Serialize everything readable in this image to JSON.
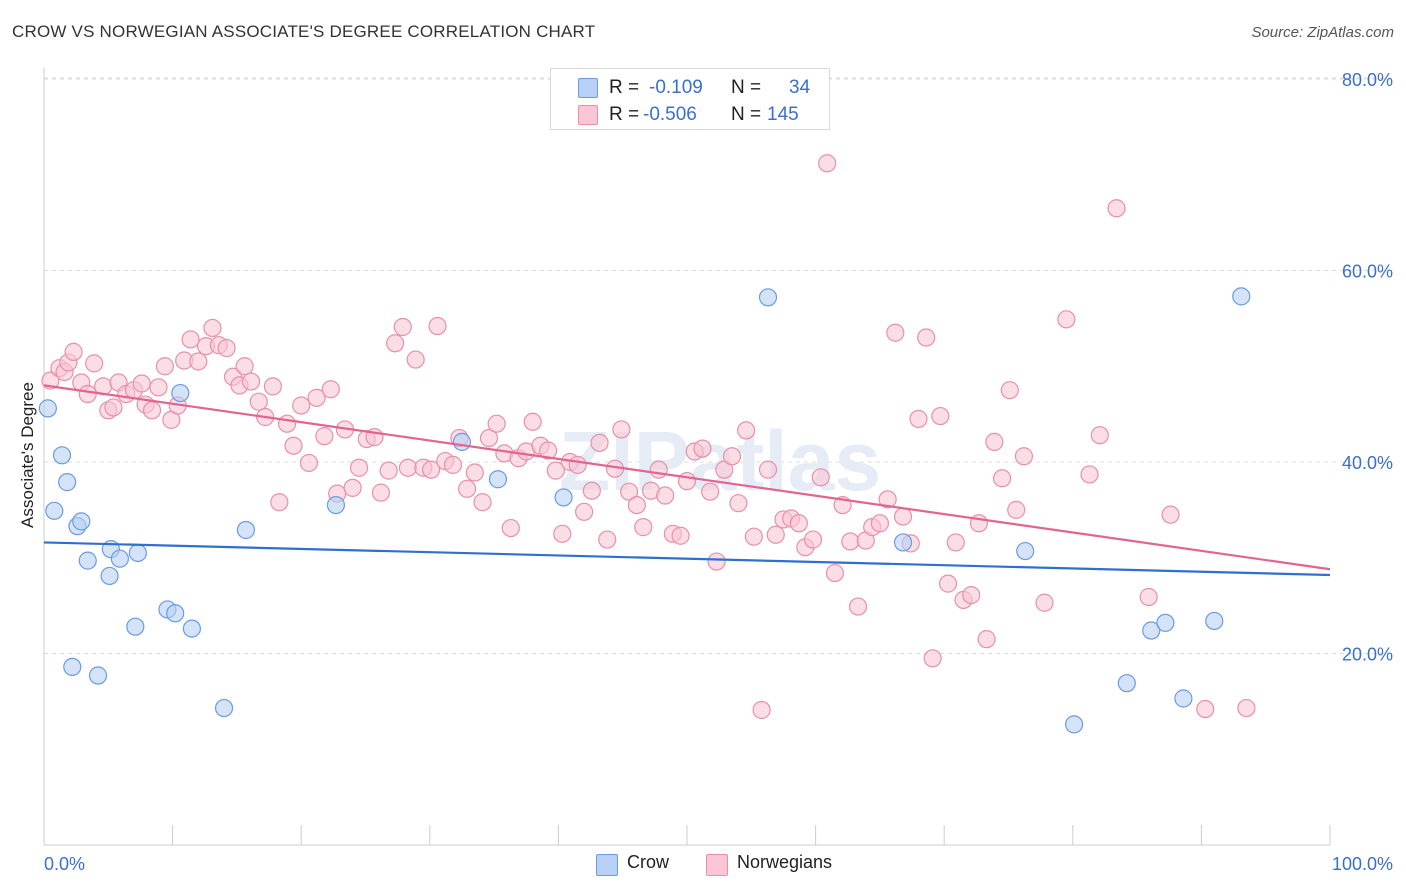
{
  "title": "CROW VS NORWEGIAN ASSOCIATE'S DEGREE CORRELATION CHART",
  "source": "Source: ZipAtlas.com",
  "watermark": "ZIPatlas",
  "legend": {
    "r_label": "R =",
    "n_label": "N =",
    "rows": [
      {
        "name": "Crow",
        "r": "-0.109",
        "n": "34",
        "fill": "#b7d0f3",
        "stroke": "#6b9be0"
      },
      {
        "name": "Norwegians",
        "r": "-0.506",
        "n": "145",
        "fill": "#f8c6d5",
        "stroke": "#e890aa"
      }
    ]
  },
  "chart_data": {
    "type": "scatter",
    "title": "CROW VS NORWEGIAN ASSOCIATE'S DEGREE CORRELATION CHART",
    "xlabel": "",
    "ylabel": "Associate's Degree",
    "xlim": [
      0,
      100
    ],
    "ylim": [
      0,
      80
    ],
    "x_tick_labels": [
      "0.0%",
      "100.0%"
    ],
    "y_ticks": [
      20,
      40,
      60,
      80
    ],
    "y_tick_labels": [
      "20.0%",
      "40.0%",
      "60.0%",
      "80.0%"
    ],
    "grid": "horizontal dashed",
    "legend_position": "top-center",
    "series": [
      {
        "name": "Crow",
        "color": "#6b9be0",
        "fill": "#b7d0f3",
        "line_color": "#2f6fd0",
        "trend": {
          "x": [
            0,
            100
          ],
          "y": [
            31.6,
            28.2
          ]
        },
        "points": [
          [
            0.3,
            45.6
          ],
          [
            0.8,
            34.9
          ],
          [
            1.4,
            40.7
          ],
          [
            1.8,
            37.9
          ],
          [
            2.2,
            18.6
          ],
          [
            2.6,
            33.3
          ],
          [
            2.9,
            33.8
          ],
          [
            3.4,
            29.7
          ],
          [
            4.2,
            17.7
          ],
          [
            5.1,
            28.1
          ],
          [
            5.2,
            30.9
          ],
          [
            5.9,
            29.9
          ],
          [
            7.1,
            22.8
          ],
          [
            7.3,
            30.5
          ],
          [
            9.6,
            24.6
          ],
          [
            10.2,
            24.2
          ],
          [
            10.6,
            47.2
          ],
          [
            11.5,
            22.6
          ],
          [
            14.0,
            14.3
          ],
          [
            15.7,
            32.9
          ],
          [
            22.7,
            35.5
          ],
          [
            32.5,
            42.1
          ],
          [
            35.3,
            38.2
          ],
          [
            40.4,
            36.3
          ],
          [
            56.3,
            57.2
          ],
          [
            66.8,
            31.6
          ],
          [
            76.3,
            30.7
          ],
          [
            80.1,
            12.6
          ],
          [
            84.2,
            16.9
          ],
          [
            86.1,
            22.4
          ],
          [
            87.2,
            23.2
          ],
          [
            88.6,
            15.3
          ],
          [
            91.0,
            23.4
          ],
          [
            93.1,
            57.3
          ]
        ]
      },
      {
        "name": "Norwegians",
        "color": "#e890aa",
        "fill": "#f8c6d5",
        "line_color": "#e36391",
        "trend": {
          "x": [
            0,
            100
          ],
          "y": [
            48.0,
            28.8
          ]
        },
        "points": [
          [
            0.5,
            48.5
          ],
          [
            1.2,
            49.8
          ],
          [
            1.6,
            49.4
          ],
          [
            1.9,
            50.4
          ],
          [
            2.3,
            51.5
          ],
          [
            2.9,
            48.3
          ],
          [
            3.4,
            47.1
          ],
          [
            3.9,
            50.3
          ],
          [
            4.6,
            47.9
          ],
          [
            5.0,
            45.4
          ],
          [
            5.4,
            45.7
          ],
          [
            5.8,
            48.3
          ],
          [
            6.4,
            47.1
          ],
          [
            7.0,
            47.5
          ],
          [
            7.6,
            48.2
          ],
          [
            7.9,
            46.0
          ],
          [
            8.4,
            45.4
          ],
          [
            8.9,
            47.8
          ],
          [
            9.4,
            50.0
          ],
          [
            9.9,
            44.4
          ],
          [
            10.4,
            45.9
          ],
          [
            10.9,
            50.6
          ],
          [
            11.4,
            52.8
          ],
          [
            12.0,
            50.5
          ],
          [
            12.6,
            52.1
          ],
          [
            13.1,
            54.0
          ],
          [
            13.6,
            52.2
          ],
          [
            14.2,
            51.9
          ],
          [
            14.7,
            48.9
          ],
          [
            15.2,
            48.0
          ],
          [
            15.6,
            50.0
          ],
          [
            16.1,
            48.4
          ],
          [
            16.7,
            46.3
          ],
          [
            17.2,
            44.7
          ],
          [
            17.8,
            47.9
          ],
          [
            18.3,
            35.8
          ],
          [
            18.9,
            44.0
          ],
          [
            19.4,
            41.7
          ],
          [
            20.0,
            45.9
          ],
          [
            20.6,
            39.9
          ],
          [
            21.2,
            46.7
          ],
          [
            21.8,
            42.7
          ],
          [
            22.3,
            47.6
          ],
          [
            22.8,
            36.7
          ],
          [
            23.4,
            43.4
          ],
          [
            24.0,
            37.3
          ],
          [
            24.5,
            39.4
          ],
          [
            25.1,
            42.4
          ],
          [
            25.7,
            42.6
          ],
          [
            26.2,
            36.8
          ],
          [
            26.8,
            39.1
          ],
          [
            27.3,
            52.4
          ],
          [
            27.9,
            54.1
          ],
          [
            28.3,
            39.4
          ],
          [
            28.9,
            50.7
          ],
          [
            29.5,
            39.4
          ],
          [
            30.1,
            39.2
          ],
          [
            30.6,
            54.2
          ],
          [
            31.2,
            40.1
          ],
          [
            31.8,
            39.7
          ],
          [
            32.3,
            42.5
          ],
          [
            32.9,
            37.2
          ],
          [
            33.5,
            38.9
          ],
          [
            34.1,
            35.8
          ],
          [
            34.6,
            42.5
          ],
          [
            35.2,
            44.0
          ],
          [
            35.8,
            40.9
          ],
          [
            36.3,
            33.1
          ],
          [
            36.9,
            40.4
          ],
          [
            37.5,
            41.1
          ],
          [
            38.0,
            44.2
          ],
          [
            38.6,
            41.7
          ],
          [
            39.2,
            41.2
          ],
          [
            39.8,
            39.1
          ],
          [
            40.3,
            32.5
          ],
          [
            40.9,
            40.0
          ],
          [
            41.5,
            39.7
          ],
          [
            42.0,
            34.8
          ],
          [
            42.6,
            37.0
          ],
          [
            43.2,
            42.0
          ],
          [
            43.8,
            31.9
          ],
          [
            44.4,
            39.3
          ],
          [
            44.9,
            43.4
          ],
          [
            45.5,
            36.9
          ],
          [
            46.1,
            35.5
          ],
          [
            46.6,
            33.2
          ],
          [
            47.2,
            37.0
          ],
          [
            47.8,
            39.2
          ],
          [
            48.3,
            36.5
          ],
          [
            48.9,
            32.5
          ],
          [
            49.5,
            32.3
          ],
          [
            50.0,
            38.0
          ],
          [
            50.6,
            41.1
          ],
          [
            51.2,
            41.4
          ],
          [
            51.8,
            36.9
          ],
          [
            52.3,
            29.6
          ],
          [
            52.9,
            39.2
          ],
          [
            53.5,
            40.6
          ],
          [
            54.0,
            35.7
          ],
          [
            54.6,
            43.3
          ],
          [
            55.2,
            32.2
          ],
          [
            55.8,
            14.1
          ],
          [
            56.3,
            39.2
          ],
          [
            56.9,
            32.4
          ],
          [
            57.5,
            34.0
          ],
          [
            58.1,
            34.1
          ],
          [
            58.7,
            33.6
          ],
          [
            59.2,
            31.1
          ],
          [
            59.8,
            31.9
          ],
          [
            60.4,
            38.4
          ],
          [
            60.9,
            71.2
          ],
          [
            61.5,
            28.4
          ],
          [
            62.1,
            35.5
          ],
          [
            62.7,
            31.7
          ],
          [
            63.3,
            24.9
          ],
          [
            63.9,
            31.8
          ],
          [
            64.4,
            33.2
          ],
          [
            65.0,
            33.6
          ],
          [
            65.6,
            36.1
          ],
          [
            66.2,
            53.5
          ],
          [
            66.8,
            34.3
          ],
          [
            67.4,
            31.5
          ],
          [
            68.0,
            44.5
          ],
          [
            68.6,
            53.0
          ],
          [
            69.1,
            19.5
          ],
          [
            69.7,
            44.8
          ],
          [
            70.3,
            27.3
          ],
          [
            70.9,
            31.6
          ],
          [
            71.5,
            25.6
          ],
          [
            72.1,
            26.1
          ],
          [
            72.7,
            33.6
          ],
          [
            73.3,
            21.5
          ],
          [
            73.9,
            42.1
          ],
          [
            74.5,
            38.3
          ],
          [
            75.1,
            47.5
          ],
          [
            75.6,
            35.0
          ],
          [
            76.2,
            40.6
          ],
          [
            77.8,
            25.3
          ],
          [
            79.5,
            54.9
          ],
          [
            81.3,
            38.7
          ],
          [
            82.1,
            42.8
          ],
          [
            83.4,
            66.5
          ],
          [
            85.9,
            25.9
          ],
          [
            87.6,
            34.5
          ],
          [
            90.3,
            14.2
          ],
          [
            93.5,
            14.3
          ]
        ]
      }
    ]
  }
}
